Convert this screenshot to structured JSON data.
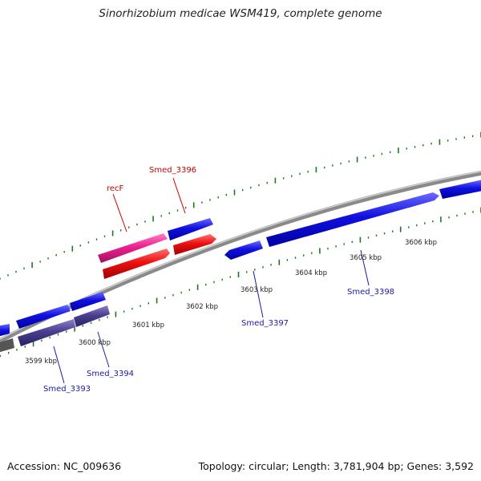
{
  "title": "Sinorhizobium medicae WSM419, complete genome",
  "accession": "Accession: NC_009636",
  "summary": "Topology: circular; Length: 3,781,904 bp; Genes: 3,592",
  "colors": {
    "backbone": "#8a8a8a",
    "tick": "#1a7a1a",
    "gene_blue": "#1010e0",
    "gene_dark": "#4a3f8f",
    "gene_red": "#ee1111",
    "gene_pink": "#ee2090",
    "label_red": "#cc0000",
    "label_blue": "#1a1aaa"
  },
  "scale_labels": [
    "3599 kbp",
    "3600 kbp",
    "3601 kbp",
    "3602 kbp",
    "3603 kbp",
    "3604 kbp",
    "3605 kbp",
    "3606 kbp"
  ],
  "gene_labels": {
    "recF": "recF",
    "Smed_3396": "Smed_3396",
    "Smed_3393": "Smed_3393",
    "Smed_3394": "Smed_3394",
    "Smed_3397": "Smed_3397",
    "Smed_3398": "Smed_3398"
  }
}
